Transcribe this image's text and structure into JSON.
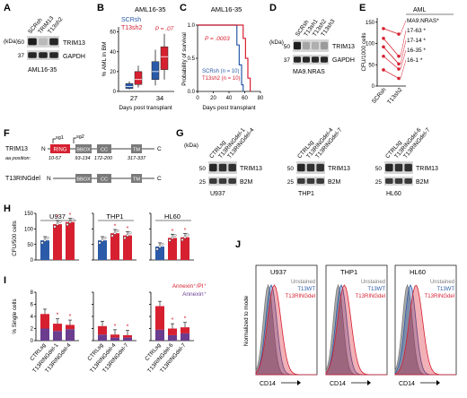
{
  "colors": {
    "blue": "#2a5aa8",
    "red": "#d62030",
    "purple": "#6a3d8f",
    "gray": "#7a7a7a",
    "gel": "#2a2a2a",
    "band": "#111111"
  },
  "panels": {
    "A": {
      "label": "A",
      "kda": "(kDa)",
      "lanes": [
        "SCRsh",
        "TRIM13",
        "T13sh2"
      ],
      "rows": [
        {
          "marker": "50",
          "protein": "TRIM13"
        },
        {
          "marker": "37",
          "protein": "GAPDH"
        }
      ],
      "caption": "AML16-35"
    },
    "B": {
      "label": "B",
      "title": "AML16-35",
      "legend": [
        "SCRsh",
        "T13sh2"
      ],
      "ylabel": "% AML in BM",
      "yticks": [
        "0",
        "20",
        "40",
        "60"
      ],
      "xticks": [
        "27",
        "34"
      ],
      "xlabel": "Days post transplant",
      "pvalue": "P = .07"
    },
    "C": {
      "label": "C",
      "title": "AML16-35",
      "ylabel": "Probability of survival",
      "yticks": [
        "0.0",
        "0.5",
        "1.0"
      ],
      "xticks": [
        "0",
        "20",
        "40",
        "60",
        "80"
      ],
      "xlabel": "Days post transplant",
      "pvalue": "P = .0003",
      "legend": [
        "SCRsh (n = 10)",
        "T13sh2 (n = 10)"
      ]
    },
    "D": {
      "label": "D",
      "kda": "(kDa)",
      "lanes": [
        "SCRsh",
        "T13sh1",
        "T13sh2",
        "T13sh3"
      ],
      "rows": [
        {
          "marker": "50",
          "protein": "TRIM13"
        },
        {
          "marker": "37",
          "protein": "GAPDH"
        }
      ],
      "caption": "MA9.NRAS"
    },
    "E": {
      "label": "E",
      "title": "AML",
      "ylabel": "CFU/1000 cells",
      "yticks": [
        "0",
        "50",
        "100",
        "150"
      ],
      "xticks": [
        "SCRsh",
        "T13sh2"
      ],
      "samples": [
        "MA9.NRAS*",
        "17-63 *",
        "17-14 *",
        "16-35 *",
        "16-1 *"
      ]
    },
    "F": {
      "label": "F",
      "name1": "TRIM13",
      "name2": "T13RINGdel",
      "n": "N",
      "c": "C",
      "sg1": "sg1",
      "sg2": "sg2",
      "domains": [
        "RING",
        "BBOX",
        "CC",
        "TM"
      ],
      "aa_label": "aa position:",
      "aa": [
        "10-57",
        "93-134",
        "172-200",
        "317-337"
      ]
    },
    "G": {
      "label": "G",
      "kda": "(kDa)",
      "blots": [
        {
          "lanes": [
            "CTRLsg",
            "T13RINGdel-1",
            "T13RINGdel-4"
          ],
          "caption": "U937",
          "proteins": [
            "TRIM13",
            "B2M"
          ]
        },
        {
          "lanes": [
            "CTRLsg",
            "T13RINGdel-4",
            "T13RINGdel-7"
          ],
          "caption": "THP1",
          "proteins": [
            "TRIM13",
            "B2M"
          ]
        },
        {
          "lanes": [
            "CTRLsg",
            "T13RINGdel-6",
            "T13RINGdel-7"
          ],
          "caption": "HL60",
          "proteins": [
            "TRIM13",
            "B2M"
          ]
        }
      ],
      "markers": [
        "50",
        "25"
      ]
    },
    "H": {
      "label": "H",
      "ylabel": "CFU/500 cells",
      "yticks": [
        "0",
        "50",
        "100",
        "150"
      ],
      "titles": [
        "U937",
        "THP1",
        "HL60"
      ],
      "values": [
        [
          63,
          115,
          122
        ],
        [
          63,
          86,
          79
        ],
        [
          43,
          71,
          73
        ]
      ]
    },
    "I": {
      "label": "I",
      "ylabel": "% Single cells",
      "yticks": [
        "0",
        "2",
        "4",
        "6",
        "8"
      ],
      "xlabels": [
        [
          "CTRLsg",
          "T13RINGdel-1",
          "T13RINGdel-4"
        ],
        [
          "CTRLsg",
          "T13RINGdel-4",
          "T13RINGdel-7"
        ],
        [
          "CTRLsg",
          "T13RINGdel-6",
          "T13RINGdel-7"
        ]
      ],
      "legend": [
        "Annexin⁺/PI⁺",
        "Annexin⁺"
      ],
      "totals": [
        [
          4.4,
          2.8,
          2.6
        ],
        [
          2.4,
          1.0,
          0.9
        ],
        [
          5.7,
          2.0,
          2.2
        ]
      ],
      "lower": [
        [
          2.0,
          1.6,
          1.9
        ],
        [
          1.0,
          0.5,
          0.5
        ],
        [
          1.8,
          0.9,
          1.2
        ]
      ]
    },
    "J": {
      "label": "J",
      "ylabel": "Normalized to mode",
      "xlabel": "CD14",
      "titles": [
        "U937",
        "THP1",
        "HL60"
      ],
      "legend": [
        "Unstained",
        "T13WT",
        "T13RINGdel"
      ]
    }
  }
}
